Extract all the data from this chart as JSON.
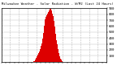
{
  "title": "Milwaukee Weather - Solar Radiation - W/M2 (Last 24 Hours)",
  "bar_color": "#dd0000",
  "background_color": "#ffffff",
  "plot_bg_color": "#ffffff",
  "grid_color": "#bbbbbb",
  "ylim": [
    0,
    900
  ],
  "ytick_values": [
    100,
    200,
    300,
    400,
    500,
    600,
    700,
    800,
    900
  ],
  "data": [
    0,
    0,
    0,
    0,
    0,
    0,
    0,
    0,
    0,
    0,
    0,
    0,
    0,
    0,
    0,
    0,
    0,
    0,
    0,
    0,
    0,
    0,
    0,
    0,
    0,
    0,
    0,
    0,
    0,
    0,
    0,
    0,
    0,
    0,
    0,
    0,
    0,
    0,
    0,
    0,
    0,
    0,
    0,
    0,
    0,
    0,
    0,
    0,
    0,
    0,
    0,
    0,
    0,
    0,
    0,
    0,
    0,
    0,
    0,
    0,
    0,
    0,
    0,
    0,
    0,
    0,
    0,
    0,
    0,
    0,
    0,
    0,
    0,
    0,
    0,
    0,
    0,
    0,
    0,
    0,
    0,
    0,
    0,
    0,
    0,
    0,
    0,
    0,
    0,
    0,
    0,
    0,
    0,
    0,
    0,
    0,
    0,
    0,
    0,
    0,
    0,
    0,
    0,
    0,
    0,
    0,
    0,
    0,
    0,
    0,
    2,
    3,
    5,
    8,
    12,
    18,
    25,
    35,
    45,
    55,
    65,
    75,
    85,
    95,
    105,
    115,
    125,
    135,
    145,
    155,
    165,
    175,
    185,
    200,
    215,
    230,
    248,
    265,
    285,
    310,
    335,
    360,
    390,
    420,
    455,
    490,
    530,
    570,
    610,
    650,
    690,
    720,
    740,
    750,
    760,
    770,
    780,
    790,
    800,
    810,
    820,
    830,
    840,
    850,
    860,
    870,
    880,
    890,
    895,
    900,
    895,
    885,
    875,
    865,
    850,
    830,
    810,
    790,
    770,
    750,
    720,
    690,
    660,
    625,
    590,
    550,
    510,
    475,
    440,
    400,
    365,
    330,
    300,
    270,
    240,
    215,
    188,
    165,
    145,
    125,
    108,
    92,
    76,
    63,
    50,
    40,
    30,
    22,
    14,
    8,
    3,
    0,
    0,
    0,
    0,
    0,
    0,
    0,
    0,
    0,
    0,
    0,
    0,
    0,
    0,
    0,
    0,
    0,
    0,
    0,
    0,
    0,
    0,
    0,
    0,
    0,
    0,
    0,
    0,
    0,
    0,
    0,
    0,
    0,
    0,
    0,
    0,
    0,
    0,
    0,
    0,
    0,
    0,
    0,
    0,
    0,
    0,
    0,
    0,
    0,
    0,
    0,
    0,
    0,
    0,
    0,
    0,
    0,
    0,
    0,
    0,
    0,
    0,
    0,
    0,
    0,
    0,
    0,
    0,
    0,
    0,
    0,
    0,
    0,
    0,
    0,
    0,
    0,
    0,
    0,
    0,
    0,
    0,
    0,
    0,
    0,
    0,
    0,
    0,
    0,
    0,
    0,
    0,
    0,
    0,
    0,
    0,
    0,
    0,
    0,
    0,
    0,
    0,
    0,
    0,
    0,
    0,
    0,
    0,
    0,
    0,
    0,
    0,
    0,
    0,
    0,
    0,
    0,
    0,
    0,
    0,
    0,
    0,
    0,
    0,
    0,
    0,
    0,
    0,
    0,
    0,
    0,
    0,
    0,
    0,
    0,
    0,
    0,
    0,
    0,
    0,
    0,
    0,
    0,
    0,
    0,
    0,
    0,
    0,
    0,
    0,
    0
  ],
  "num_vgrid": 12,
  "figsize": [
    1.6,
    0.87
  ],
  "dpi": 100
}
